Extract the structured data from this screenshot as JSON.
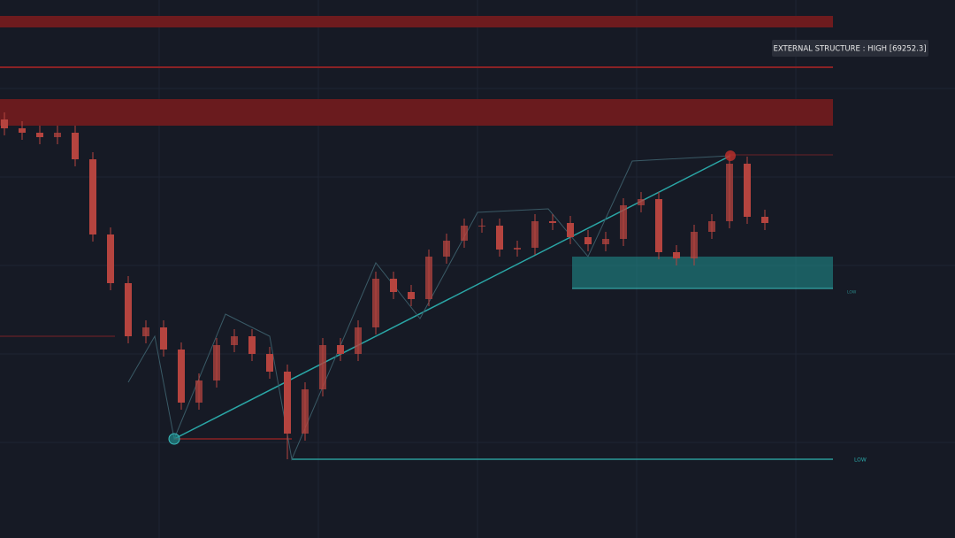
{
  "chart_data": {
    "type": "candlestick",
    "annotations": [
      "EXTERNAL STRUCTURE : HIGH [69252.3]",
      "LOW",
      "LOW"
    ],
    "ylim": [
      58400,
      73600
    ],
    "color": "#b5443f",
    "series": [
      {
        "open": [
          70225,
          69975,
          69850,
          69725,
          69850,
          69100,
          66975,
          65600,
          64100,
          64350,
          63725,
          62225,
          62850,
          63850,
          64100,
          63600,
          63100,
          61350,
          62600,
          63850,
          63600,
          64350,
          65725,
          65350,
          65150,
          66350,
          66800,
          67225,
          67225,
          66550,
          66600,
          67350,
          67300,
          66900,
          66700,
          66850,
          67800,
          67975,
          66475,
          66300,
          67050,
          67350,
          68975,
          67475
        ],
        "high": [
          70425,
          70175,
          70050,
          70050,
          70050,
          69300,
          67175,
          65800,
          64550,
          64550,
          63925,
          63050,
          64050,
          64300,
          64300,
          63800,
          63300,
          62800,
          64050,
          64050,
          64550,
          65925,
          65925,
          65550,
          66550,
          67000,
          67425,
          67425,
          67425,
          66800,
          67550,
          67550,
          67500,
          67100,
          67050,
          68000,
          68175,
          68175,
          66675,
          67250,
          67550,
          69252.3,
          69175,
          67675
        ],
        "low": [
          69775,
          69650,
          69525,
          69525,
          68900,
          66775,
          65400,
          63900,
          63900,
          63525,
          62025,
          62025,
          62650,
          63650,
          63400,
          62900,
          60625,
          61150,
          62400,
          63400,
          63400,
          64150,
          65150,
          64950,
          64950,
          66150,
          66600,
          67025,
          66350,
          66350,
          66400,
          67100,
          66700,
          66500,
          66500,
          66650,
          67600,
          66275,
          66100,
          66100,
          66850,
          67150,
          67275,
          67100
        ],
        "close": [
          69975,
          69850,
          69725,
          69850,
          69100,
          66975,
          65600,
          64100,
          64350,
          63725,
          62225,
          62850,
          63850,
          64100,
          63600,
          63100,
          61350,
          62600,
          63850,
          63600,
          64350,
          65725,
          65350,
          65150,
          66350,
          66800,
          67225,
          67225,
          66550,
          66600,
          67350,
          67300,
          66900,
          66700,
          66850,
          67800,
          67975,
          66475,
          66300,
          67050,
          67350,
          68975,
          67475,
          67300
        ]
      }
    ]
  }
}
